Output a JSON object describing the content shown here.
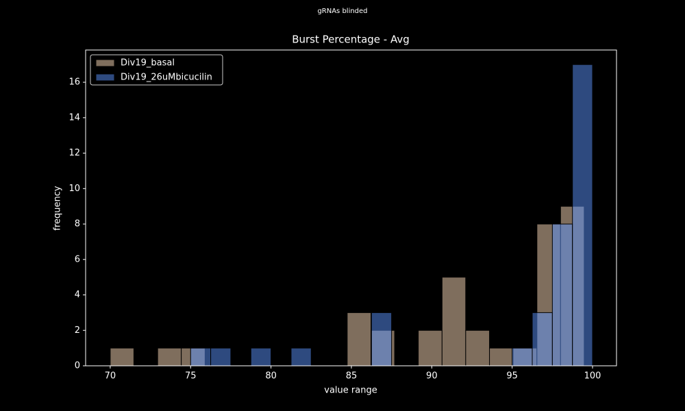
{
  "chart_data": {
    "type": "histogram",
    "suptitle": "gRNAs blinded",
    "title": "Burst Percentage - Avg",
    "x_label": "value range",
    "y_label": "frequency",
    "xlim": [
      68.47,
      101.49
    ],
    "ylim": [
      0,
      17.82
    ],
    "xticks": [
      70,
      75,
      80,
      85,
      90,
      95,
      100
    ],
    "yticks": [
      0,
      2,
      4,
      6,
      8,
      10,
      12,
      14,
      16
    ],
    "legend": "upper left",
    "opacity": 0.5,
    "series": [
      {
        "name": "Div19_basal",
        "color": "#fedcba",
        "bins": [
          70,
          71.47,
          72.95,
          74.42,
          75.9,
          77.37,
          78.85,
          80.32,
          81.79,
          83.27,
          84.74,
          86.22,
          87.69,
          89.16,
          90.64,
          92.11,
          93.59,
          95.06,
          96.54,
          98.01,
          99.48
        ],
        "values": [
          1,
          0,
          1,
          1,
          0,
          0,
          0,
          0,
          0,
          0,
          3,
          2,
          0,
          2,
          5,
          2,
          1,
          1,
          8,
          9
        ]
      },
      {
        "name": "Div19_26uMbicucilin",
        "color": "#5c94fe",
        "bins": [
          75,
          76.25,
          77.5,
          78.75,
          80,
          81.25,
          82.5,
          83.75,
          85,
          86.25,
          87.5,
          88.75,
          90,
          91.25,
          92.5,
          93.75,
          95,
          96.25,
          97.5,
          98.75,
          100
        ],
        "values": [
          1,
          1,
          0,
          1,
          0,
          1,
          0,
          0,
          0,
          3,
          0,
          0,
          0,
          0,
          0,
          0,
          1,
          3,
          8,
          17
        ]
      }
    ]
  }
}
